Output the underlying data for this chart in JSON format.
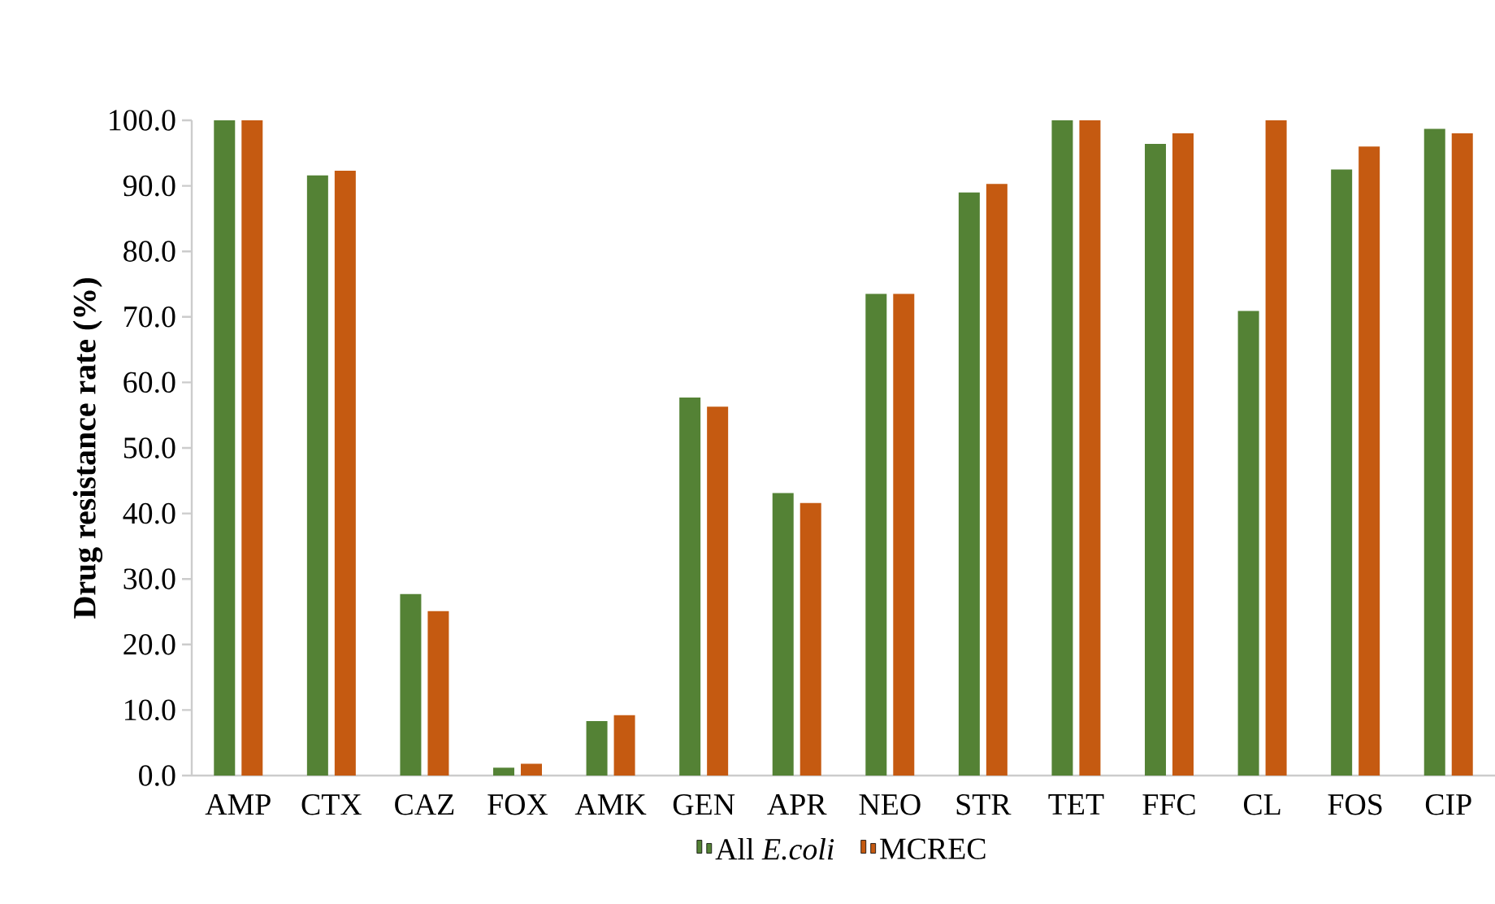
{
  "chart_data": {
    "type": "bar",
    "ylabel": "Drug resistance rate (%)",
    "categories": [
      "AMP",
      "CTX",
      "CAZ",
      "FOX",
      "AMK",
      "GEN",
      "APR",
      "NEO",
      "STR",
      "TET",
      "FFC",
      "CL",
      "FOS",
      "CIP"
    ],
    "series": [
      {
        "name": "All *E.coli*",
        "color": "#548235",
        "values": [
          100,
          91.6,
          27.7,
          1.2,
          8.3,
          57.7,
          43.1,
          73.5,
          89.0,
          100,
          96.4,
          70.9,
          92.5,
          98.7
        ]
      },
      {
        "name": "MCREC",
        "color": "#c55a11",
        "values": [
          100,
          92.3,
          25.1,
          1.8,
          9.2,
          56.3,
          41.6,
          73.5,
          90.3,
          100,
          98.0,
          100,
          96.0,
          98.0
        ]
      }
    ],
    "ylim": [
      0,
      100
    ],
    "yticks": [
      {
        "value": 0,
        "label": "0.0"
      },
      {
        "value": 10,
        "label": "10.0"
      },
      {
        "value": 20,
        "label": "20.0"
      },
      {
        "value": 30,
        "label": "30.0"
      },
      {
        "value": 40,
        "label": "40.0"
      },
      {
        "value": 50,
        "label": "50.0"
      },
      {
        "value": 60,
        "label": "60.0"
      },
      {
        "value": 70,
        "label": "70.0"
      },
      {
        "value": 80,
        "label": "80.0"
      },
      {
        "value": 90,
        "label": "90.0"
      },
      {
        "value": 100,
        "label": "100.0"
      }
    ],
    "legend": "bottom"
  }
}
